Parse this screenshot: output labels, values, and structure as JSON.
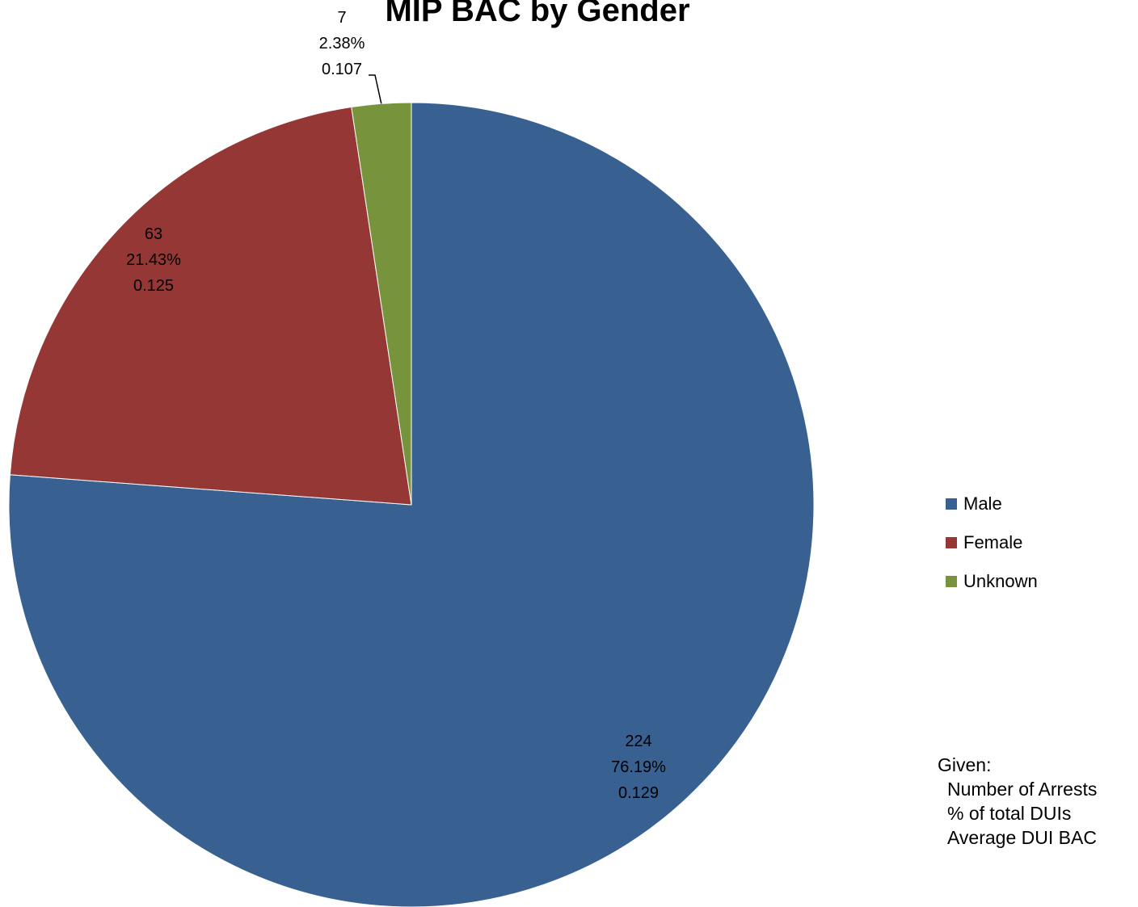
{
  "chart_data": {
    "type": "pie",
    "title": "MIP BAC by Gender",
    "start_angle_deg": -90,
    "direction": "clockwise",
    "slices": [
      {
        "name": "Male",
        "count": "224",
        "percent": "76.19%",
        "avg_bac": "0.129",
        "value": 76.19,
        "color": "#386192"
      },
      {
        "name": "Female",
        "count": "63",
        "percent": "21.43%",
        "avg_bac": "0.125",
        "value": 21.43,
        "color": "#943735"
      },
      {
        "name": "Unknown",
        "count": "7",
        "percent": "2.38%",
        "avg_bac": "0.107",
        "value": 2.38,
        "color": "#77933C"
      }
    ],
    "legend_placement": "right"
  },
  "note": {
    "heading": "Given:",
    "lines": [
      "Number of Arrests",
      "% of total DUIs",
      "Average DUI BAC"
    ]
  }
}
